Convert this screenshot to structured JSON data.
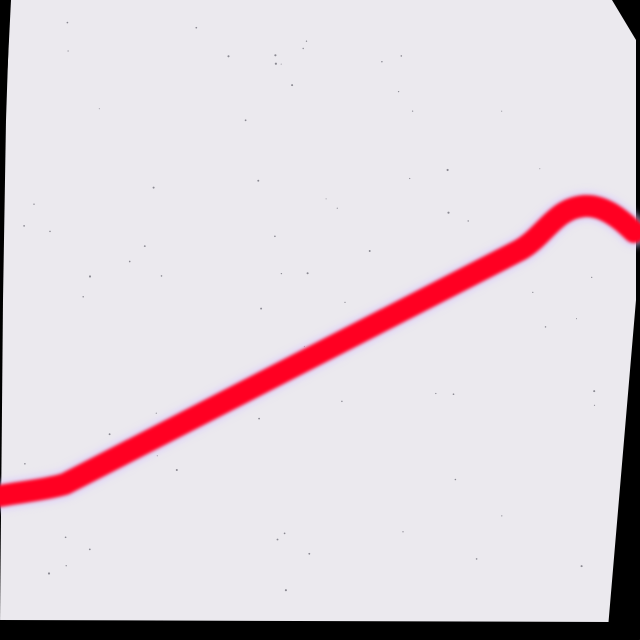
{
  "scene": {
    "description_label": "",
    "colors": {
      "background_frame": "#000000",
      "paper": "#ebe9ee",
      "stroke": "#ff0020",
      "stroke_glow": "#d9c8ff",
      "speckle": "#3a3a46"
    },
    "stroke_shape": "red-curved-line",
    "paper_shape": "tilted-sheet"
  }
}
